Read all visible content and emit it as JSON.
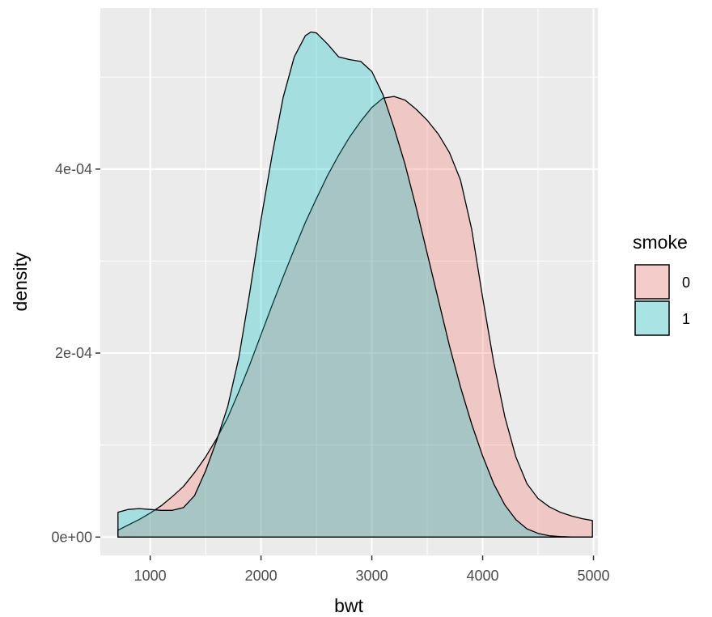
{
  "chart_data": {
    "type": "area",
    "chart_kind": "density",
    "xlabel": "bwt",
    "ylabel": "density",
    "xlim": [
      550,
      5040
    ],
    "ylim": [
      -2e-05,
      0.000575
    ],
    "x_ticks": [
      1000,
      2000,
      3000,
      4000,
      5000
    ],
    "x_tick_labels": [
      "1000",
      "2000",
      "3000",
      "4000",
      "5000"
    ],
    "y_ticks": [
      0,
      0.0002,
      0.0004
    ],
    "y_tick_labels": [
      "0e+00",
      "2e-04",
      "4e-04"
    ],
    "grid": true,
    "legend": {
      "title": "smoke",
      "position": "right"
    },
    "series": [
      {
        "name": "0",
        "color": "#F8766D",
        "x": [
          709,
          800,
          900,
          1000,
          1100,
          1200,
          1300,
          1400,
          1500,
          1600,
          1700,
          1800,
          1900,
          2000,
          2100,
          2200,
          2300,
          2400,
          2500,
          2600,
          2700,
          2800,
          2900,
          3000,
          3100,
          3200,
          3300,
          3400,
          3500,
          3600,
          3700,
          3800,
          3900,
          4000,
          4100,
          4200,
          4300,
          4400,
          4500,
          4600,
          4700,
          4800,
          4900,
          4990
        ],
        "values": [
          7.5e-06,
          1.3e-05,
          1.9e-05,
          2.6e-05,
          3.4e-05,
          4.4e-05,
          5.5e-05,
          7e-05,
          8.7e-05,
          0.000107,
          0.00013,
          0.000158,
          0.000188,
          0.00022,
          0.000252,
          0.000283,
          0.000313,
          0.000342,
          0.000368,
          0.000393,
          0.000415,
          0.000435,
          0.000452,
          0.000467,
          0.000477,
          0.000479,
          0.000475,
          0.000465,
          0.000453,
          0.000438,
          0.000418,
          0.000388,
          0.000335,
          0.00026,
          0.00019,
          0.000131,
          8.7e-05,
          5.8e-05,
          4.2e-05,
          3.3e-05,
          2.7e-05,
          2.3e-05,
          2e-05,
          1.8e-05
        ]
      },
      {
        "name": "1",
        "color": "#00BFC4",
        "x": [
          709,
          800,
          900,
          1000,
          1100,
          1200,
          1300,
          1400,
          1500,
          1600,
          1700,
          1800,
          1900,
          2000,
          2100,
          2200,
          2300,
          2400,
          2450,
          2500,
          2600,
          2700,
          2800,
          2900,
          3000,
          3100,
          3200,
          3300,
          3400,
          3500,
          3600,
          3700,
          3800,
          3900,
          4000,
          4100,
          4200,
          4300,
          4400,
          4500,
          4600,
          4700,
          4800,
          4900,
          4990
        ],
        "values": [
          2.7e-05,
          3e-05,
          3.1e-05,
          3e-05,
          2.9e-05,
          2.9e-05,
          3.2e-05,
          4.5e-05,
          7.2e-05,
          0.000105,
          0.000142,
          0.000195,
          0.000267,
          0.000345,
          0.000415,
          0.000478,
          0.000522,
          0.000545,
          0.000549,
          0.000548,
          0.000536,
          0.000522,
          0.000519,
          0.000517,
          0.000506,
          0.000481,
          0.000445,
          0.000405,
          0.000358,
          0.000308,
          0.000258,
          0.000208,
          0.000163,
          0.000123,
          8.8e-05,
          5.8e-05,
          3.5e-05,
          1.9e-05,
          9e-06,
          4e-06,
          1.5e-06,
          5e-07,
          2e-07,
          1e-07,
          1e-07
        ]
      }
    ]
  }
}
